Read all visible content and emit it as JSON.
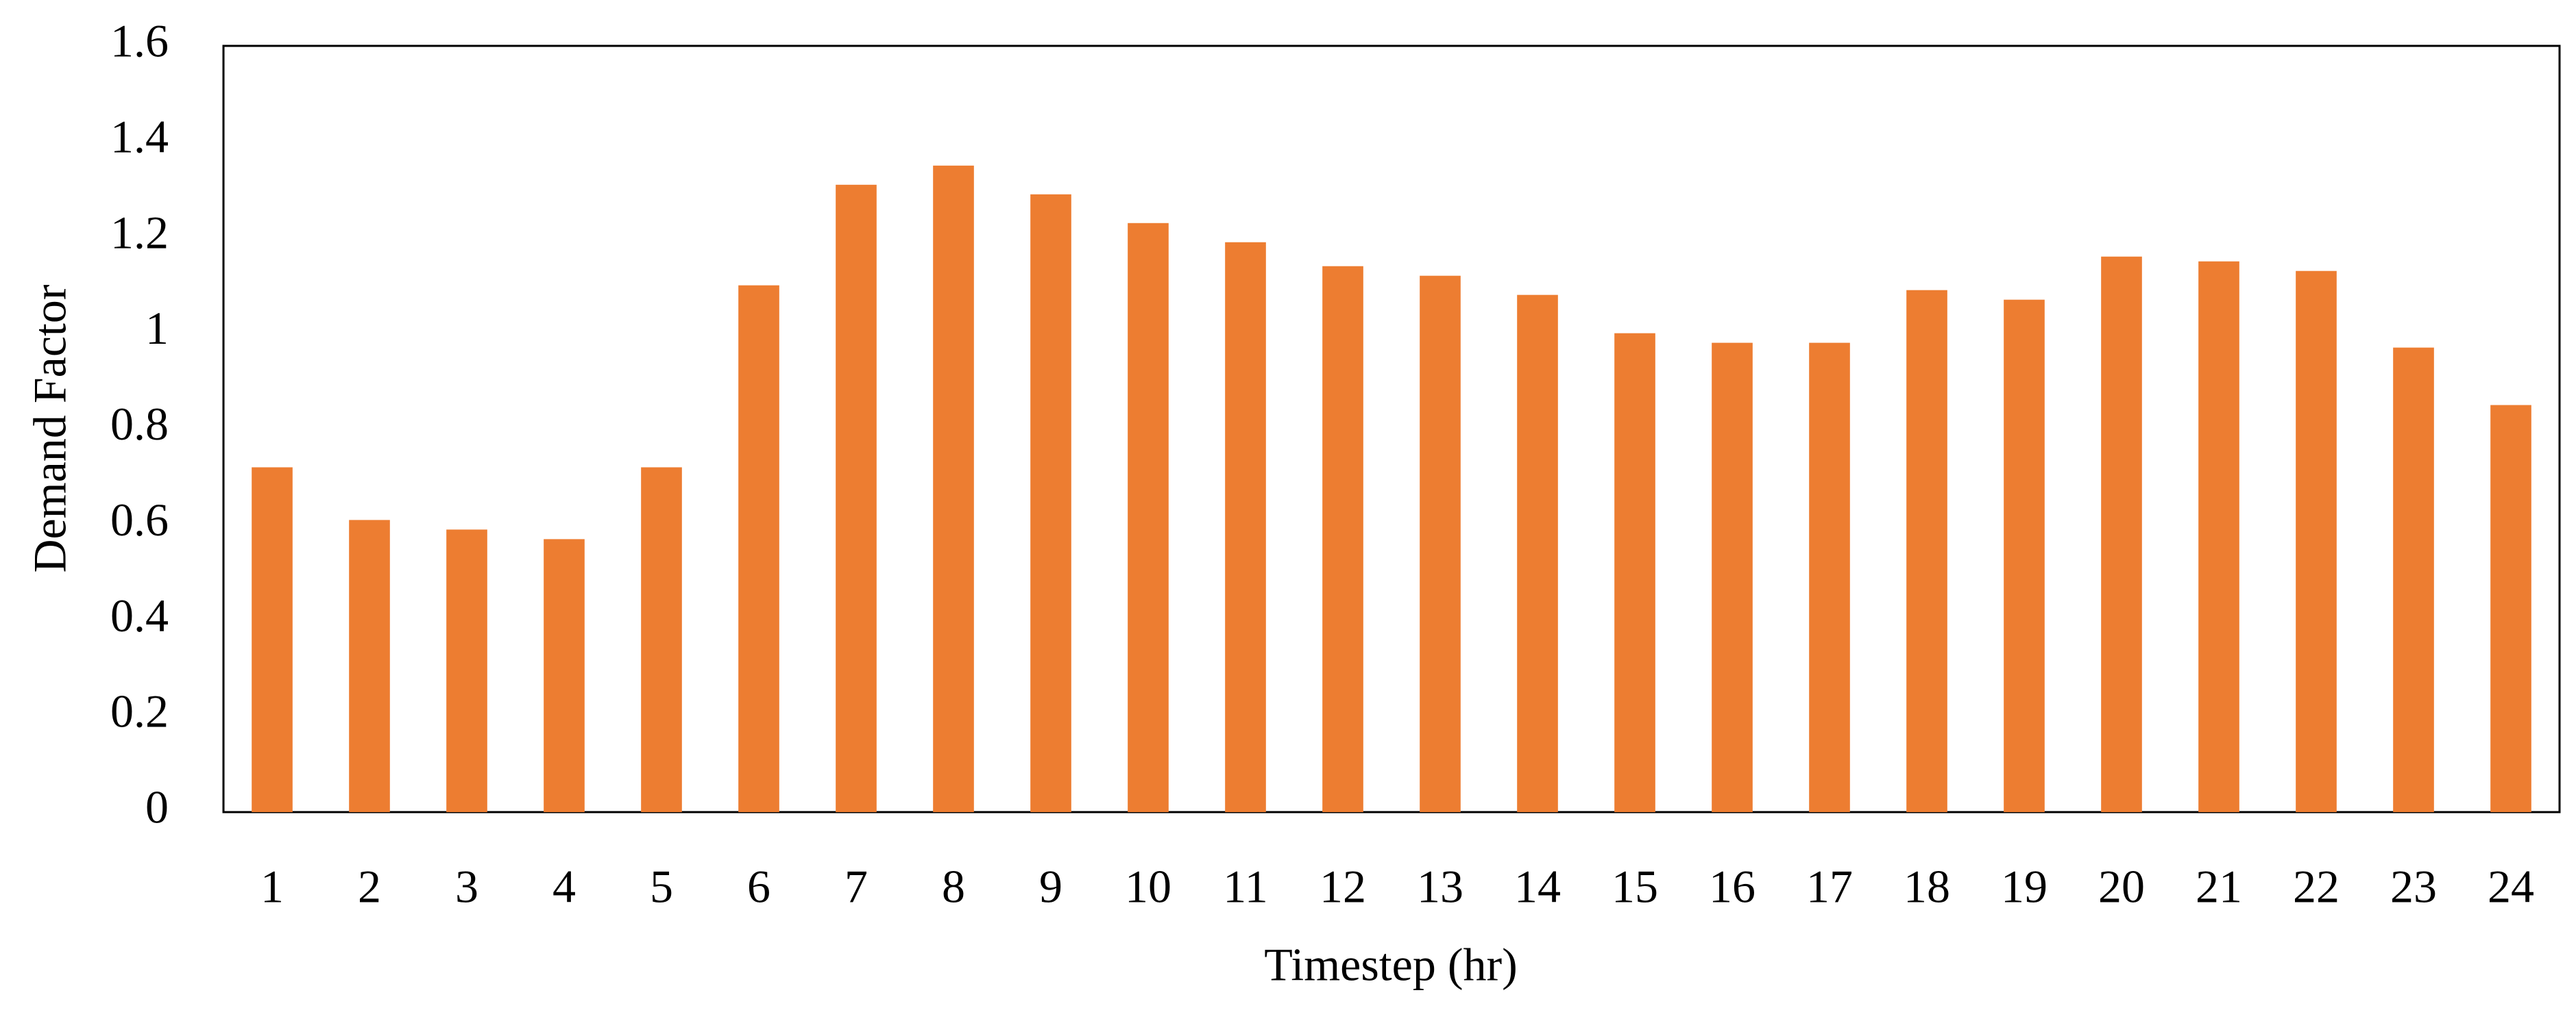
{
  "chart_data": {
    "type": "bar",
    "x_label": "Timestep (hr)",
    "y_label": "Demand Factor",
    "categories": [
      "1",
      "2",
      "3",
      "4",
      "5",
      "6",
      "7",
      "8",
      "9",
      "10",
      "11",
      "12",
      "13",
      "14",
      "15",
      "16",
      "17",
      "18",
      "19",
      "20",
      "21",
      "22",
      "23",
      "24"
    ],
    "values": [
      0.72,
      0.61,
      0.59,
      0.57,
      0.72,
      1.1,
      1.31,
      1.35,
      1.29,
      1.23,
      1.19,
      1.14,
      1.12,
      1.08,
      1.0,
      0.98,
      0.98,
      1.09,
      1.07,
      1.16,
      1.15,
      1.13,
      0.97,
      0.85
    ],
    "color": "#ED7D31",
    "ylim": [
      0,
      1.6
    ],
    "yticks": [
      0,
      0.2,
      0.4,
      0.6,
      0.8,
      1,
      1.2,
      1.4,
      1.6
    ],
    "grid": false
  }
}
